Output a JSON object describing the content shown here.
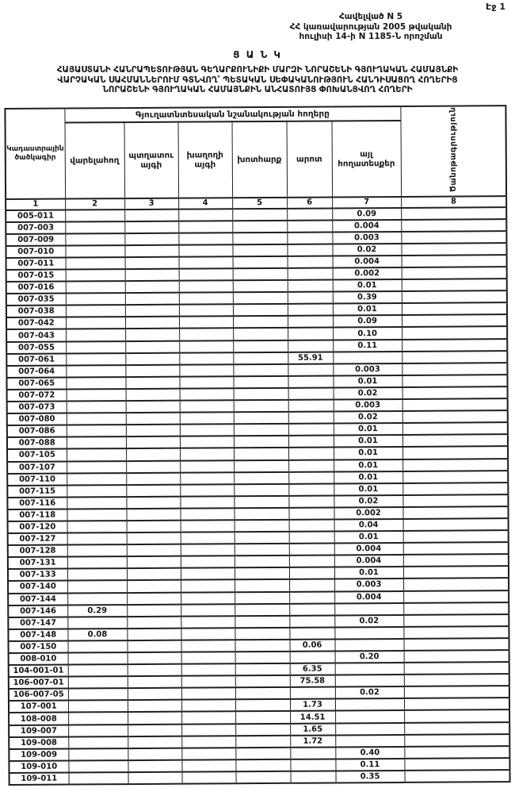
{
  "page": {
    "page_label": "Էջ 1"
  },
  "appendix": {
    "line1": "Հավելված N 5",
    "line2": "ՀՀ կառավարության 2005 թվականի",
    "line3": "հուլիսի 14-ի N 1185-Ն որոշման"
  },
  "title": {
    "heading": "Ց Ա Ն Կ",
    "line1": "ՀԱՅԱՍՏԱՆԻ ՀԱՆՐԱՊԵՏՈՒԹՅԱՆ ԳԵՂԱՐՔՈՒՆԻՔԻ ՄԱՐԶԻ ՆՈՐԱՇԵՆԻ ԳՅՈՒՂԱԿԱՆ ՀԱՄԱՅՆՔԻ",
    "line2": "ՎԱՐՉԱԿԱՆ ՍԱՀՄԱՆՆԵՐՈՒՄ ԳՏՆՎՈՂ՝ ՊԵՏԱԿԱՆ ՍԵՓԱԿԱՆՈՒԹՅՈՒՆ ՀԱՆԴԻՍԱՑՈՂ ՀՈՂԵՐԻՑ",
    "line3": "ՆՈՐԱՇԵՆԻ ԳՅՈՒՂԱԿԱՆ ՀԱՄԱՅՆՔԻՆ ԱՆՀԱՏՈՒՅՑ ՓՈԽԱՆՑՎՈՂ ՀՈՂԵՐԻ"
  },
  "table": {
    "col1_header": "Կադաստրային ծածկագիր",
    "group_header": "Գյուղատնտեսական նշանակության հողերը",
    "sub_headers": [
      "վարելահող",
      "պտղատու այգի",
      "խաղողի այգի",
      "խոտհարք",
      "արոտ",
      "այլ հողատեսքեր"
    ],
    "note_header": "Ծանոթագրություն",
    "column_numbers": [
      "1",
      "2",
      "3",
      "4",
      "5",
      "6",
      "7",
      "8"
    ],
    "rows": [
      [
        "005-011",
        "",
        "",
        "",
        "",
        "",
        "0.09",
        ""
      ],
      [
        "007-003",
        "",
        "",
        "",
        "",
        "",
        "0.004",
        ""
      ],
      [
        "007-009",
        "",
        "",
        "",
        "",
        "",
        "0.003",
        ""
      ],
      [
        "007-010",
        "",
        "",
        "",
        "",
        "",
        "0.02",
        ""
      ],
      [
        "007-011",
        "",
        "",
        "",
        "",
        "",
        "0.004",
        ""
      ],
      [
        "007-015",
        "",
        "",
        "",
        "",
        "",
        "0.002",
        ""
      ],
      [
        "007-016",
        "",
        "",
        "",
        "",
        "",
        "0.01",
        ""
      ],
      [
        "007-035",
        "",
        "",
        "",
        "",
        "",
        "0.39",
        ""
      ],
      [
        "007-038",
        "",
        "",
        "",
        "",
        "",
        "0.01",
        ""
      ],
      [
        "007-042",
        "",
        "",
        "",
        "",
        "",
        "0.09",
        ""
      ],
      [
        "007-043",
        "",
        "",
        "",
        "",
        "",
        "0.10",
        ""
      ],
      [
        "007-055",
        "",
        "",
        "",
        "",
        "",
        "0.11",
        ""
      ],
      [
        "007-061",
        "",
        "",
        "",
        "",
        "55.91",
        "",
        ""
      ],
      [
        "007-064",
        "",
        "",
        "",
        "",
        "",
        "0.003",
        ""
      ],
      [
        "007-065",
        "",
        "",
        "",
        "",
        "",
        "0.01",
        ""
      ],
      [
        "007-072",
        "",
        "",
        "",
        "",
        "",
        "0.02",
        ""
      ],
      [
        "007-073",
        "",
        "",
        "",
        "",
        "",
        "0.003",
        ""
      ],
      [
        "007-080",
        "",
        "",
        "",
        "",
        "",
        "0.02",
        ""
      ],
      [
        "007-086",
        "",
        "",
        "",
        "",
        "",
        "0.01",
        ""
      ],
      [
        "007-088",
        "",
        "",
        "",
        "",
        "",
        "0.01",
        ""
      ],
      [
        "007-105",
        "",
        "",
        "",
        "",
        "",
        "0.01",
        ""
      ],
      [
        "007-107",
        "",
        "",
        "",
        "",
        "",
        "0.01",
        ""
      ],
      [
        "007-110",
        "",
        "",
        "",
        "",
        "",
        "0.01",
        ""
      ],
      [
        "007-115",
        "",
        "",
        "",
        "",
        "",
        "0.01",
        ""
      ],
      [
        "007-116",
        "",
        "",
        "",
        "",
        "",
        "0.02",
        ""
      ],
      [
        "007-118",
        "",
        "",
        "",
        "",
        "",
        "0.002",
        ""
      ],
      [
        "007-120",
        "",
        "",
        "",
        "",
        "",
        "0.04",
        ""
      ],
      [
        "007-127",
        "",
        "",
        "",
        "",
        "",
        "0.01",
        ""
      ],
      [
        "007-128",
        "",
        "",
        "",
        "",
        "",
        "0.004",
        ""
      ],
      [
        "007-131",
        "",
        "",
        "",
        "",
        "",
        "0.004",
        ""
      ],
      [
        "007-133",
        "",
        "",
        "",
        "",
        "",
        "0.01",
        ""
      ],
      [
        "007-140",
        "",
        "",
        "",
        "",
        "",
        "0.003",
        ""
      ],
      [
        "007-144",
        "",
        "",
        "",
        "",
        "",
        "0.004",
        ""
      ],
      [
        "007-146",
        "0.29",
        "",
        "",
        "",
        "",
        "",
        ""
      ],
      [
        "007-147",
        "",
        "",
        "",
        "",
        "",
        "0.02",
        ""
      ],
      [
        "007-148",
        "0.08",
        "",
        "",
        "",
        "",
        "",
        ""
      ],
      [
        "007-150",
        "",
        "",
        "",
        "",
        "0.06",
        "",
        ""
      ],
      [
        "008-010",
        "",
        "",
        "",
        "",
        "",
        "0.20",
        ""
      ],
      [
        "104-001-01",
        "",
        "",
        "",
        "",
        "6.35",
        "",
        ""
      ],
      [
        "106-007-01",
        "",
        "",
        "",
        "",
        "75.58",
        "",
        ""
      ],
      [
        "106-007-05",
        "",
        "",
        "",
        "",
        "",
        "0.02",
        ""
      ],
      [
        "107-001",
        "",
        "",
        "",
        "",
        "1.73",
        "",
        ""
      ],
      [
        "108-008",
        "",
        "",
        "",
        "",
        "14.51",
        "",
        ""
      ],
      [
        "109-007",
        "",
        "",
        "",
        "",
        "1.65",
        "",
        ""
      ],
      [
        "109-008",
        "",
        "",
        "",
        "",
        "1.72",
        "",
        ""
      ],
      [
        "109-009",
        "",
        "",
        "",
        "",
        "",
        "0.40",
        ""
      ],
      [
        "109-010",
        "",
        "",
        "",
        "",
        "",
        "0.11",
        ""
      ],
      [
        "109-011",
        "",
        "",
        "",
        "",
        "",
        "0.35",
        ""
      ]
    ]
  }
}
